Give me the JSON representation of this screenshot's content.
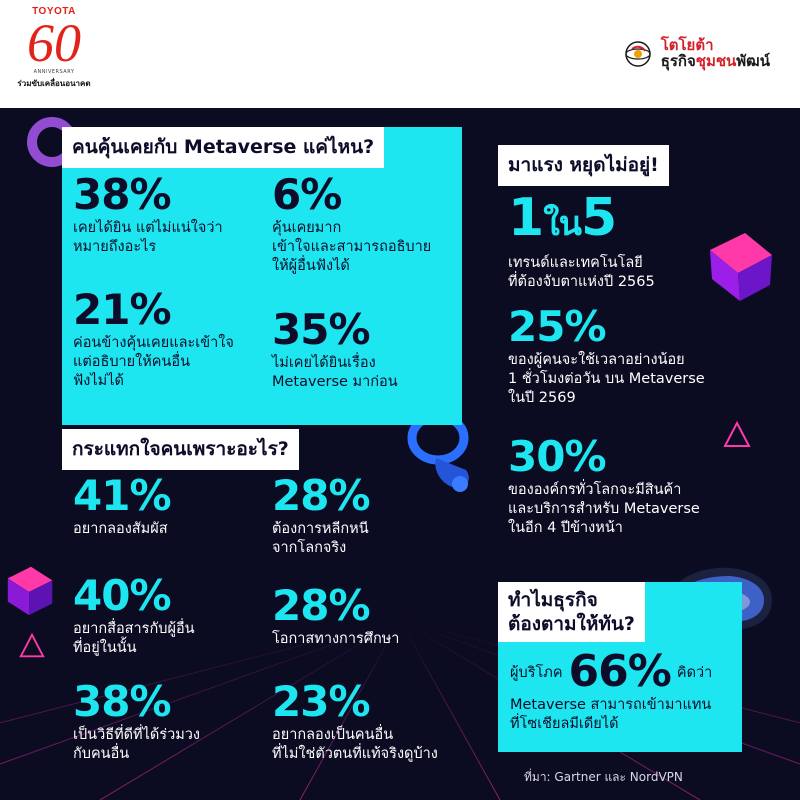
{
  "header": {
    "toyota_brand": "TOYOTA",
    "anniversary_number": "60",
    "anniversary_word": "ANNIVERSARY",
    "toyota_tagline": "ร่วมขับเคลื่อนอนาคต",
    "partner_top": "โตโยต้า",
    "partner_bottom_a": "ธุรกิจ",
    "partner_bottom_b": "ชุมชน",
    "partner_bottom_c": "พัฒน์"
  },
  "familiarity": {
    "title": "คนคุ้นเคยกับ Metaverse แค่ไหน?",
    "stats": [
      {
        "value": "38%",
        "desc": "เคยได้ยิน แต่ไม่แน่ใจว่า\nหมายถึงอะไร"
      },
      {
        "value": "6%",
        "desc": "คุ้นเคยมาก\nเข้าใจและสามารถอธิบาย\nให้ผู้อื่นฟังได้"
      },
      {
        "value": "21%",
        "desc": "ค่อนข้างคุ้นเคยและเข้าใจ\nแต่อธิบายให้คนอื่น\nฟังไม่ได้"
      },
      {
        "value": "35%",
        "desc": "ไม่เคยได้ยินเรื่อง\nMetaverse มาก่อน"
      }
    ]
  },
  "motivation": {
    "title": "กระแทกใจคนเพราะอะไร?",
    "stats": [
      {
        "value": "41%",
        "desc": "อยากลองสัมผัส"
      },
      {
        "value": "28%",
        "desc": "ต้องการหลีกหนี\nจากโลกจริง"
      },
      {
        "value": "40%",
        "desc": "อยากสื่อสารกับผู้อื่น\nที่อยู่ในนั้น"
      },
      {
        "value": "28%",
        "desc": "โอกาสทางการศึกษา"
      },
      {
        "value": "38%",
        "desc": "เป็นวิธีที่ดีที่ได้ร่วมวง\nกับคนอื่น"
      },
      {
        "value": "23%",
        "desc": "อยากลองเป็นคนอื่น\nที่ไม่ใช่ตัวตนที่แท้จริงดูบ้าง"
      }
    ]
  },
  "trend": {
    "title": "มาแรง หยุดไม่อยู่!",
    "one_a": "1",
    "one_mid": "ใน",
    "one_b": "5",
    "one_desc": "เทรนด์และเทคโนโลยี\nที่ต้องจับตาแห่งปี 2565",
    "stats": [
      {
        "value": "25%",
        "desc": "ของผู้คนจะใช้เวลาอย่างน้อย\n1 ชั่วโมงต่อวัน บน Metaverse\nในปี 2569"
      },
      {
        "value": "30%",
        "desc": "ขององค์กรทั่วโลกจะมีสินค้า\nและบริการสำหรับ Metaverse\nในอีก 4 ปีข้างหน้า"
      }
    ]
  },
  "business": {
    "title_line1": "ทำไมธุรกิจ",
    "title_line2": "ต้องตามให้ทัน?",
    "prefix": "ผู้บริโภค",
    "value": "66%",
    "suffix": "คิดว่า",
    "desc": "Metaverse สามารถเข้ามาแทน\nที่โซเชียลมีเดียได้"
  },
  "source": "ที่มา: Gartner และ NordVPN",
  "colors": {
    "accent_cyan": "#1ee6f0",
    "background": "#0b0b22",
    "toyota_red": "#e2231a",
    "text_dark": "#0d0d2a"
  },
  "icons": [
    "toyota-60-logo",
    "globe-icon",
    "vr-controller-icon",
    "vr-headset-icon",
    "cube-icon",
    "triangle-icon",
    "ring-icon"
  ]
}
